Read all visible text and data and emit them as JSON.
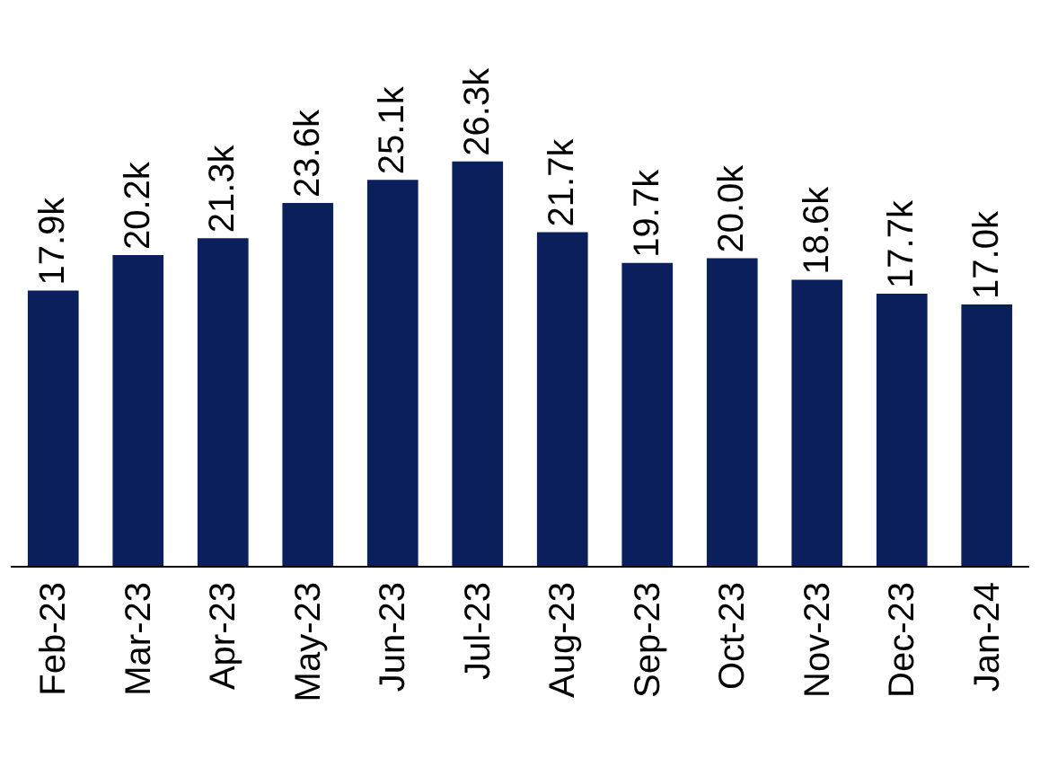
{
  "chart_data": {
    "type": "bar",
    "categories": [
      "Feb-23",
      "Mar-23",
      "Apr-23",
      "May-23",
      "Jun-23",
      "Jul-23",
      "Aug-23",
      "Sep-23",
      "Oct-23",
      "Nov-23",
      "Dec-23",
      "Jan-24"
    ],
    "values": [
      17.9,
      20.2,
      21.3,
      23.6,
      25.1,
      26.3,
      21.7,
      19.7,
      20.0,
      18.6,
      17.7,
      17.0
    ],
    "value_labels": [
      "17.9k",
      "20.2k",
      "21.3k",
      "23.6k",
      "25.1k",
      "26.3k",
      "21.7k",
      "19.7k",
      "20.0k",
      "18.6k",
      "17.7k",
      "17.0k"
    ],
    "color": "#0b1f5c",
    "grid": false
  }
}
